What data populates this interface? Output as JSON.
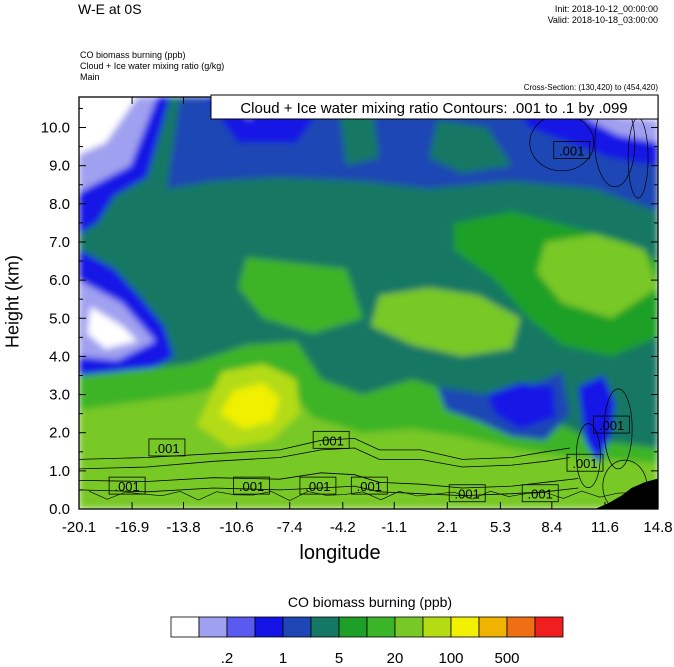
{
  "header": {
    "title": "W-E at 0S",
    "init": "Init: 2018-10-12_00:00:00",
    "valid": "Valid: 2018-10-18_03:00:00",
    "subtitle_lines": [
      "CO biomass burning   (ppb)",
      "Cloud + Ice water mixing ratio   (g/kg)",
      "Main"
    ],
    "cross_section": "Cross-Section: (130,420) to (454,420)",
    "contour_label": "Cloud + Ice water mixing ratio Contours: .001 to .1 by .099"
  },
  "chart_data": {
    "type": "heatmap",
    "xlabel": "longitude",
    "ylabel": "Height (km)",
    "x_ticks": [
      "-20.1",
      "-16.9",
      "-13.8",
      "-10.6",
      "-7.4",
      "-4.2",
      "-1.1",
      "2.1",
      "5.3",
      "8.4",
      "11.6",
      "14.8"
    ],
    "x_tick_values": [
      -20.1,
      -16.9,
      -13.8,
      -10.6,
      -7.4,
      -4.2,
      -1.1,
      2.1,
      5.3,
      8.4,
      11.6,
      14.8
    ],
    "y_ticks": [
      "0.0",
      "1.0",
      "2.0",
      "3.0",
      "4.0",
      "5.0",
      "6.0",
      "7.0",
      "8.0",
      "9.0",
      "10.0"
    ],
    "y_tick_values": [
      0,
      1,
      2,
      3,
      4,
      5,
      6,
      7,
      8,
      9,
      10
    ],
    "xlim": [
      -20.1,
      14.8
    ],
    "ylim": [
      0,
      10.8
    ],
    "contour_labels": [
      {
        "text": ".001",
        "x": -14.8,
        "y": 1.6
      },
      {
        "text": ".001",
        "x": -4.9,
        "y": 1.8
      },
      {
        "text": ".001",
        "x": 9.6,
        "y": 9.4
      },
      {
        "text": ".001",
        "x": 12.0,
        "y": 2.2
      },
      {
        "text": ".001",
        "x": 10.4,
        "y": 1.2
      },
      {
        "text": ".001",
        "x": -17.2,
        "y": 0.6
      },
      {
        "text": ".001",
        "x": -9.7,
        "y": 0.6
      },
      {
        "text": ".001",
        "x": -5.7,
        "y": 0.6
      },
      {
        "text": ".001",
        "x": -2.6,
        "y": 0.6
      },
      {
        "text": ".001",
        "x": 3.3,
        "y": 0.4
      },
      {
        "text": ".001",
        "x": 7.7,
        "y": 0.4
      }
    ],
    "colorbar": {
      "title": "CO biomass burning  (ppb)",
      "colors": [
        "#ffffff",
        "#a0a0f0",
        "#5a5af0",
        "#1414e6",
        "#1e46b4",
        "#147864",
        "#1ea028",
        "#3cb428",
        "#78c828",
        "#b4dc14",
        "#f0f000",
        "#f0b400",
        "#f06e14",
        "#f01e1e"
      ],
      "labels": [
        {
          "text": ".2",
          "after_box": 2
        },
        {
          "text": "1",
          "after_box": 4
        },
        {
          "text": "5",
          "after_box": 6
        },
        {
          "text": "20",
          "after_box": 8
        },
        {
          "text": "100",
          "after_box": 10
        },
        {
          "text": "500",
          "after_box": 12
        }
      ]
    }
  }
}
